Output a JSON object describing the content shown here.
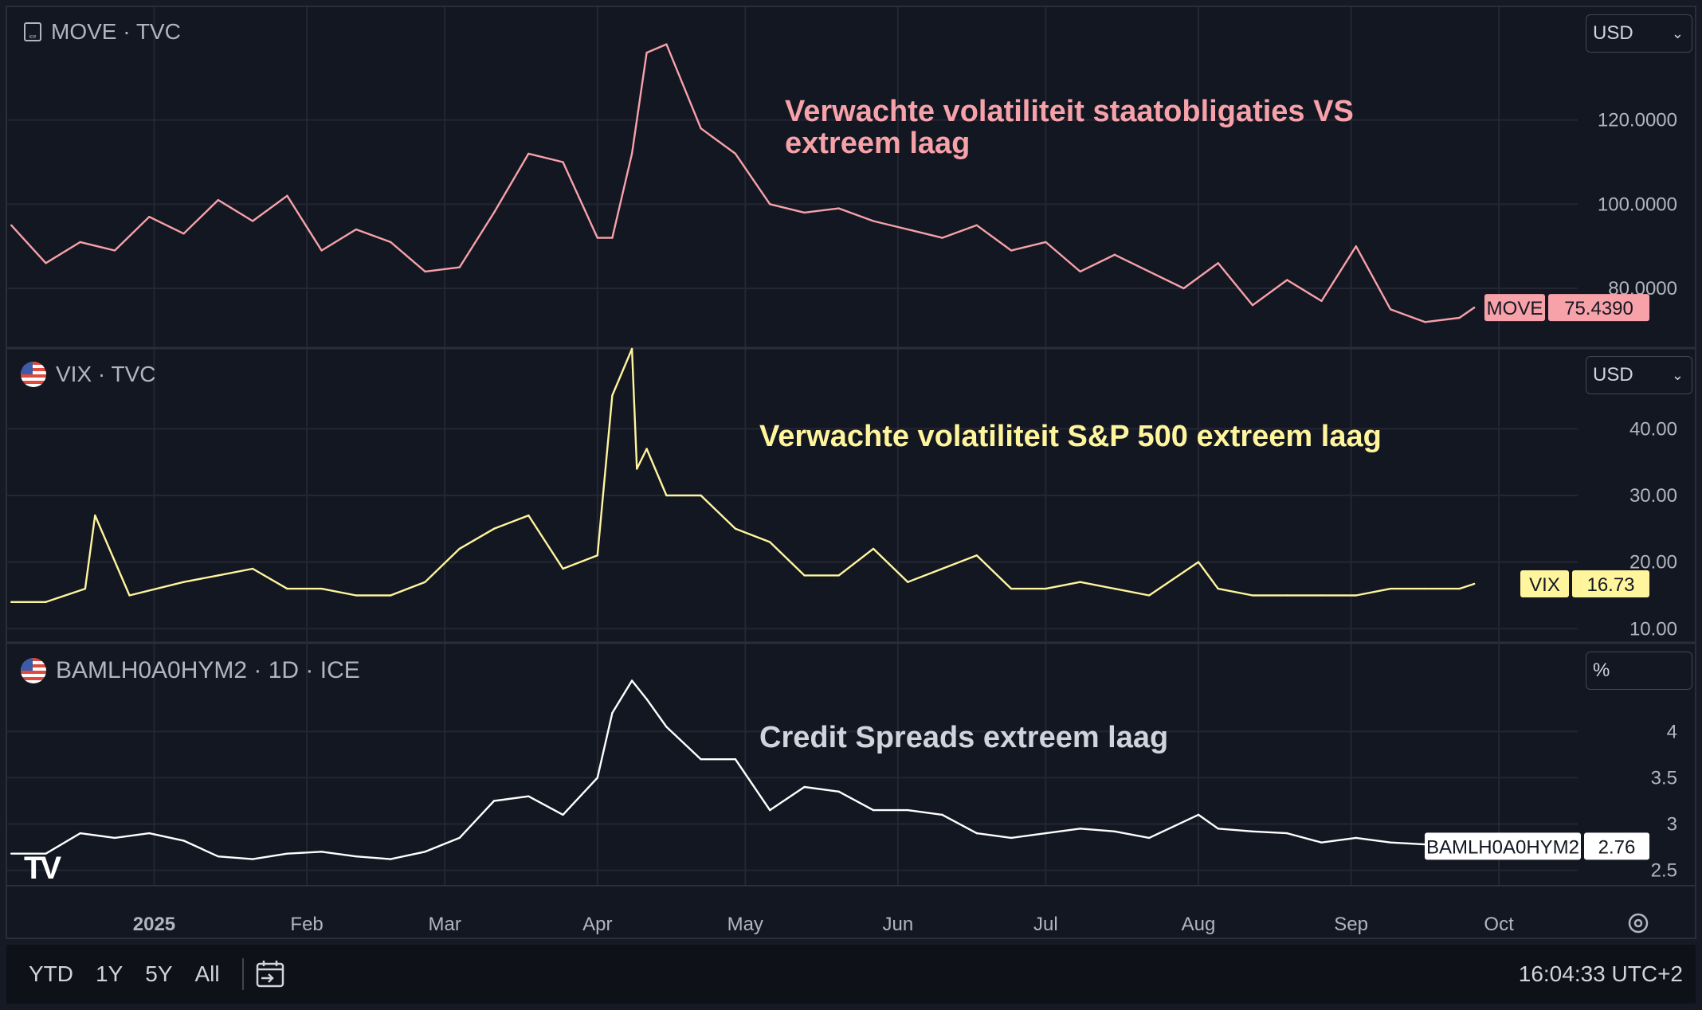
{
  "panes": [
    {
      "symbol_label": "MOVE · TVC",
      "icon": "ice-icon",
      "currency": "USD",
      "annotation": "Verwachte volatiliteit staatobligaties VS extreem laag",
      "annotation_color": "#f7a1a9",
      "badge_name": "MOVE",
      "badge_value": "75.4390",
      "line_color": "#f7a1a9"
    },
    {
      "symbol_label": "VIX · TVC",
      "icon": "us-flag-icon",
      "currency": "USD",
      "annotation": "Verwachte volatiliteit S&P 500 extreem laag",
      "annotation_color": "#fff59d",
      "badge_name": "VIX",
      "badge_value": "16.73",
      "line_color": "#fff59d"
    },
    {
      "symbol_label": "BAMLH0A0HYM2 · 1D · ICE",
      "icon": "us-flag-icon",
      "currency": "%",
      "annotation": "Credit Spreads extreem laag",
      "annotation_color": "#d1d4dc",
      "badge_name": "BAMLH0A0HYM2",
      "badge_value": "2.76",
      "line_color": "#ffffff"
    }
  ],
  "x_axis": {
    "labels": [
      "2025",
      "Feb",
      "Mar",
      "Apr",
      "May",
      "Jun",
      "Jul",
      "Aug",
      "Sep",
      "Oct"
    ]
  },
  "toolbar": {
    "ranges": [
      "YTD",
      "1Y",
      "5Y",
      "All"
    ],
    "time": "16:04:33 UTC+2"
  },
  "chart_data": [
    {
      "type": "line",
      "title": "MOVE · TVC",
      "ylabel": "USD",
      "ylim": [
        66,
        147
      ],
      "yticks": [
        "120.0000",
        "100.0000",
        "80.0000"
      ],
      "ytick_values": [
        120,
        100,
        80
      ],
      "x": [
        "2024-12-03",
        "2024-12-10",
        "2024-12-17",
        "2024-12-24",
        "2024-12-31",
        "2025-01-07",
        "2025-01-14",
        "2025-01-21",
        "2025-01-28",
        "2025-02-04",
        "2025-02-11",
        "2025-02-18",
        "2025-02-25",
        "2025-03-04",
        "2025-03-11",
        "2025-03-18",
        "2025-03-25",
        "2025-04-01",
        "2025-04-04",
        "2025-04-08",
        "2025-04-11",
        "2025-04-15",
        "2025-04-22",
        "2025-04-29",
        "2025-05-06",
        "2025-05-13",
        "2025-05-20",
        "2025-05-27",
        "2025-06-03",
        "2025-06-10",
        "2025-06-17",
        "2025-06-24",
        "2025-07-01",
        "2025-07-08",
        "2025-07-15",
        "2025-07-22",
        "2025-07-29",
        "2025-08-05",
        "2025-08-12",
        "2025-08-19",
        "2025-08-26",
        "2025-09-02",
        "2025-09-09",
        "2025-09-16",
        "2025-09-23",
        "2025-09-26"
      ],
      "series": [
        {
          "name": "MOVE",
          "values": [
            95,
            86,
            91,
            89,
            97,
            93,
            101,
            96,
            102,
            89,
            94,
            91,
            84,
            85,
            98,
            112,
            110,
            92,
            92,
            112,
            136,
            138,
            118,
            112,
            100,
            98,
            99,
            96,
            94,
            92,
            95,
            89,
            91,
            84,
            88,
            84,
            80,
            86,
            76,
            82,
            77,
            90,
            75,
            72,
            73,
            75.44
          ]
        }
      ]
    },
    {
      "type": "line",
      "title": "VIX · TVC",
      "ylabel": "USD",
      "ylim": [
        8,
        52
      ],
      "yticks": [
        "40.00",
        "30.00",
        "20.00",
        "10.00"
      ],
      "ytick_values": [
        40,
        30,
        20,
        10
      ],
      "x": [
        "2024-12-03",
        "2024-12-10",
        "2024-12-18",
        "2024-12-20",
        "2024-12-27",
        "2025-01-07",
        "2025-01-14",
        "2025-01-21",
        "2025-01-28",
        "2025-02-04",
        "2025-02-11",
        "2025-02-18",
        "2025-02-25",
        "2025-03-04",
        "2025-03-11",
        "2025-03-18",
        "2025-03-25",
        "2025-04-01",
        "2025-04-04",
        "2025-04-08",
        "2025-04-09",
        "2025-04-11",
        "2025-04-15",
        "2025-04-22",
        "2025-04-29",
        "2025-05-06",
        "2025-05-13",
        "2025-05-20",
        "2025-05-27",
        "2025-06-03",
        "2025-06-10",
        "2025-06-17",
        "2025-06-24",
        "2025-07-01",
        "2025-07-08",
        "2025-07-15",
        "2025-07-22",
        "2025-08-01",
        "2025-08-05",
        "2025-08-12",
        "2025-08-19",
        "2025-08-26",
        "2025-09-02",
        "2025-09-09",
        "2025-09-16",
        "2025-09-23",
        "2025-09-26"
      ],
      "series": [
        {
          "name": "VIX",
          "values": [
            14,
            14,
            16,
            27,
            15,
            17,
            18,
            19,
            16,
            16,
            15,
            15,
            17,
            22,
            25,
            27,
            19,
            21,
            45,
            52,
            34,
            37,
            30,
            30,
            25,
            23,
            18,
            18,
            22,
            17,
            19,
            21,
            16,
            16,
            17,
            16,
            15,
            20,
            16,
            15,
            15,
            15,
            15,
            16,
            16,
            16,
            16.73
          ]
        }
      ]
    },
    {
      "type": "line",
      "title": "BAMLH0A0HYM2 · 1D · ICE",
      "ylabel": "%",
      "ylim": [
        2.35,
        4.95
      ],
      "yticks": [
        "4",
        "3.5",
        "3",
        "2.5"
      ],
      "ytick_values": [
        4,
        3.5,
        3,
        2.5
      ],
      "x": [
        "2024-12-03",
        "2024-12-10",
        "2024-12-17",
        "2024-12-24",
        "2024-12-31",
        "2025-01-07",
        "2025-01-14",
        "2025-01-21",
        "2025-01-28",
        "2025-02-04",
        "2025-02-11",
        "2025-02-18",
        "2025-02-25",
        "2025-03-04",
        "2025-03-11",
        "2025-03-18",
        "2025-03-25",
        "2025-04-01",
        "2025-04-04",
        "2025-04-08",
        "2025-04-11",
        "2025-04-15",
        "2025-04-22",
        "2025-04-29",
        "2025-05-06",
        "2025-05-13",
        "2025-05-20",
        "2025-05-27",
        "2025-06-03",
        "2025-06-10",
        "2025-06-17",
        "2025-06-24",
        "2025-07-01",
        "2025-07-08",
        "2025-07-15",
        "2025-07-22",
        "2025-08-01",
        "2025-08-05",
        "2025-08-12",
        "2025-08-19",
        "2025-08-26",
        "2025-09-02",
        "2025-09-09",
        "2025-09-16",
        "2025-09-23",
        "2025-09-26"
      ],
      "series": [
        {
          "name": "BAMLH0A0HYM2",
          "values": [
            2.68,
            2.68,
            2.9,
            2.85,
            2.9,
            2.82,
            2.65,
            2.62,
            2.68,
            2.7,
            2.65,
            2.62,
            2.7,
            2.85,
            3.25,
            3.3,
            3.1,
            3.5,
            4.2,
            4.55,
            4.35,
            4.05,
            3.7,
            3.7,
            3.15,
            3.4,
            3.35,
            3.15,
            3.15,
            3.1,
            2.9,
            2.85,
            2.9,
            2.95,
            2.92,
            2.85,
            3.1,
            2.95,
            2.92,
            2.9,
            2.8,
            2.85,
            2.8,
            2.78,
            2.72,
            2.76
          ]
        }
      ]
    }
  ]
}
